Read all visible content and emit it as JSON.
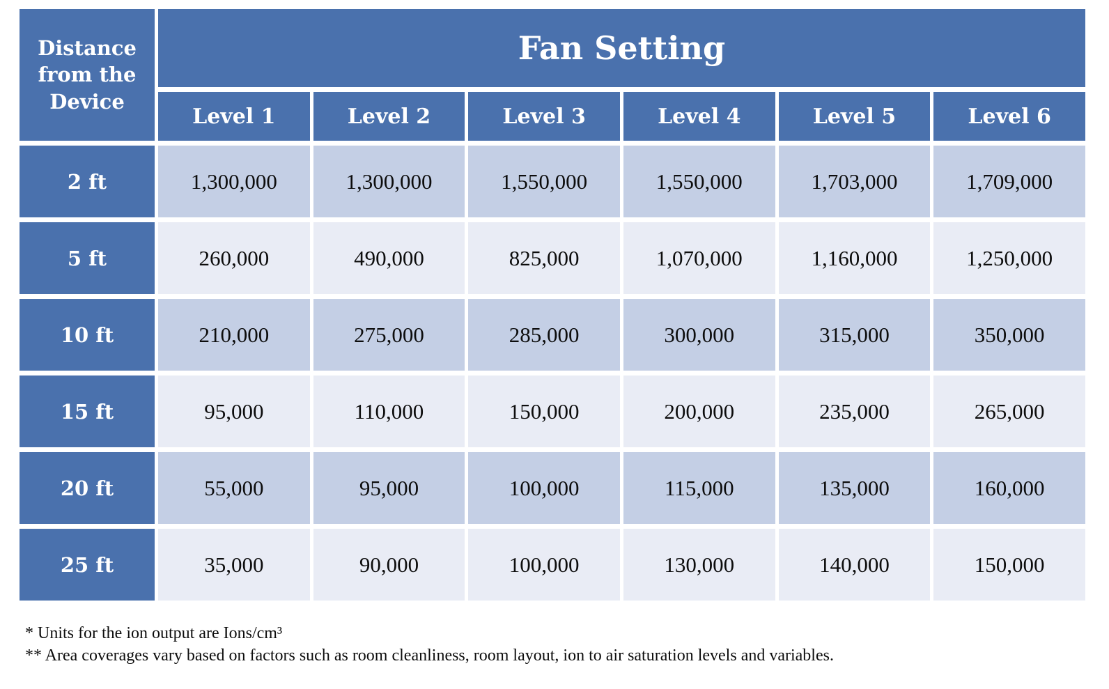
{
  "table": {
    "corner_header": "Distance from the Device",
    "group_header": "Fan Setting",
    "column_headers": [
      "Level 1",
      "Level 2",
      "Level 3",
      "Level 4",
      "Level 5",
      "Level 6"
    ],
    "rows": [
      {
        "label": "2 ft",
        "values": [
          "1,300,000",
          "1,300,000",
          "1,550,000",
          "1,550,000",
          "1,703,000",
          "1,709,000"
        ]
      },
      {
        "label": "5 ft",
        "values": [
          "260,000",
          "490,000",
          "825,000",
          "1,070,000",
          "1,160,000",
          "1,250,000"
        ]
      },
      {
        "label": "10 ft",
        "values": [
          "210,000",
          "275,000",
          "285,000",
          "300,000",
          "315,000",
          "350,000"
        ]
      },
      {
        "label": "15 ft",
        "values": [
          "95,000",
          "110,000",
          "150,000",
          "200,000",
          "235,000",
          "265,000"
        ]
      },
      {
        "label": "20 ft",
        "values": [
          "55,000",
          "95,000",
          "100,000",
          "115,000",
          "135,000",
          "160,000"
        ]
      },
      {
        "label": "25 ft",
        "values": [
          "35,000",
          "90,000",
          "100,000",
          "130,000",
          "140,000",
          "150,000"
        ]
      }
    ],
    "colors": {
      "header_bg": "#4a71ad",
      "band_dark": "#c4cfe5",
      "band_light": "#e9ecf5",
      "header_text": "#ffffff",
      "cell_text": "#0d0d0d",
      "page_bg": "#ffffff"
    }
  },
  "footnotes": [
    "* Units for the ion output  are Ions/cm³",
    "** Area coverages vary based on factors such as room cleanliness, room layout, ion to air saturation levels and variables."
  ]
}
